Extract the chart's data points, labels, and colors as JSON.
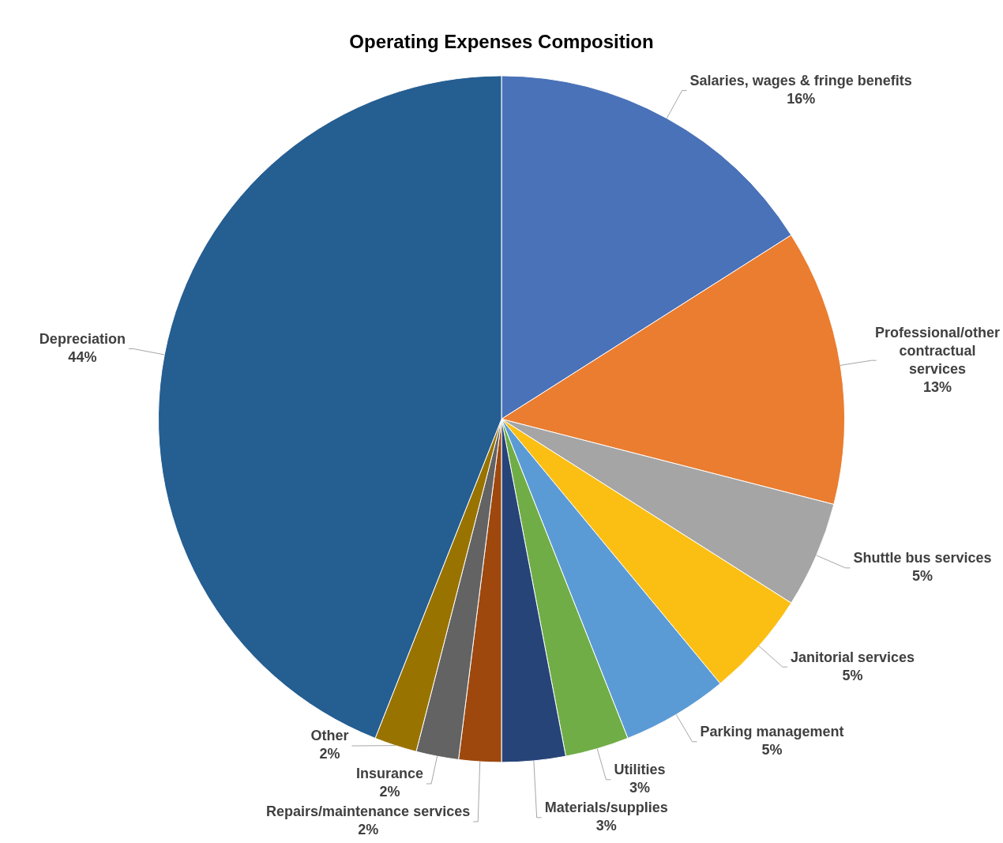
{
  "chart_data": {
    "type": "pie",
    "title": "Operating Expenses Composition",
    "categories": [
      "Salaries, wages & fringe benefits",
      "Professional/other contractual services",
      "Shuttle bus services",
      "Janitorial services",
      "Parking management",
      "Utilities",
      "Materials/supplies",
      "Repairs/maintenance services",
      "Insurance",
      "Other",
      "Depreciation"
    ],
    "values": [
      16,
      13,
      5,
      5,
      5,
      3,
      3,
      2,
      2,
      2,
      44
    ],
    "value_labels": [
      "16%",
      "13%",
      "5%",
      "5%",
      "5%",
      "3%",
      "3%",
      "2%",
      "2%",
      "2%",
      "44%"
    ],
    "colors": [
      "#4a72b8",
      "#ea7d30",
      "#a5a5a5",
      "#fbbf14",
      "#5b9bd5",
      "#70ad47",
      "#264478",
      "#9e480e",
      "#636363",
      "#997300",
      "#255e91"
    ],
    "legend": false
  }
}
